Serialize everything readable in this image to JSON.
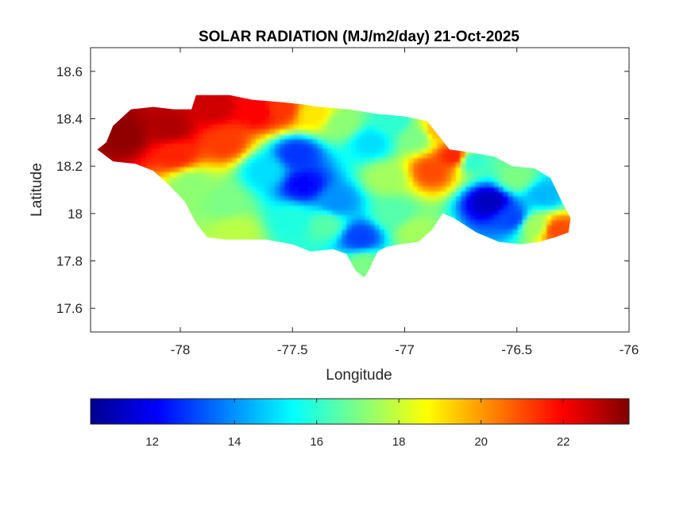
{
  "chart_data": {
    "type": "heatmap",
    "title": "SOLAR RADIATION (MJ/m2/day) 21-Oct-2025",
    "xlabel": "Longitude",
    "ylabel": "Latitude",
    "xlim": [
      -78.4,
      -76.0
    ],
    "ylim": [
      17.5,
      18.7
    ],
    "xticks": [
      -78,
      -77.5,
      -77,
      -76.5,
      -76
    ],
    "xtick_labels": [
      "-78",
      "-77.5",
      "-77",
      "-76.5",
      "-76"
    ],
    "yticks": [
      17.6,
      17.8,
      18.0,
      18.2,
      18.4,
      18.6
    ],
    "ytick_labels": [
      "17.6",
      "17.8",
      "18",
      "18.2",
      "18.4",
      "18.6"
    ],
    "grid": false,
    "colormap": "jet",
    "colorbar": {
      "orientation": "horizontal",
      "range": [
        10.5,
        23.6
      ],
      "ticks": [
        12,
        14,
        16,
        18,
        20,
        22
      ],
      "tick_labels": [
        "12",
        "14",
        "16",
        "18",
        "20",
        "22"
      ],
      "colors": [
        "#00008f",
        "#0000ff",
        "#0080ff",
        "#00ffff",
        "#80ff80",
        "#ffff00",
        "#ff8000",
        "#ff0000",
        "#800000"
      ]
    },
    "value_range": [
      10.5,
      23.6
    ],
    "field_points": [
      {
        "lon": -78.25,
        "lat": 18.33,
        "value": 23.4
      },
      {
        "lon": -78.05,
        "lat": 18.36,
        "value": 23.0
      },
      {
        "lon": -78.02,
        "lat": 18.25,
        "value": 21.5
      },
      {
        "lon": -77.85,
        "lat": 18.45,
        "value": 22.6
      },
      {
        "lon": -77.8,
        "lat": 18.3,
        "value": 21.2
      },
      {
        "lon": -77.65,
        "lat": 18.43,
        "value": 22.0
      },
      {
        "lon": -77.55,
        "lat": 18.44,
        "value": 21.3
      },
      {
        "lon": -77.4,
        "lat": 18.42,
        "value": 19.0
      },
      {
        "lon": -77.95,
        "lat": 18.12,
        "value": 17.2
      },
      {
        "lon": -77.8,
        "lat": 18.05,
        "value": 17.0
      },
      {
        "lon": -77.75,
        "lat": 17.92,
        "value": 17.8
      },
      {
        "lon": -77.62,
        "lat": 18.18,
        "value": 15.0
      },
      {
        "lon": -77.48,
        "lat": 18.25,
        "value": 12.8
      },
      {
        "lon": -77.45,
        "lat": 18.12,
        "value": 12.2
      },
      {
        "lon": -77.3,
        "lat": 18.05,
        "value": 14.0
      },
      {
        "lon": -77.5,
        "lat": 17.97,
        "value": 15.8
      },
      {
        "lon": -77.35,
        "lat": 17.95,
        "value": 16.5
      },
      {
        "lon": -77.2,
        "lat": 17.9,
        "value": 13.0
      },
      {
        "lon": -77.18,
        "lat": 17.78,
        "value": 17.0
      },
      {
        "lon": -77.28,
        "lat": 18.38,
        "value": 17.2
      },
      {
        "lon": -77.15,
        "lat": 18.3,
        "value": 15.0
      },
      {
        "lon": -77.05,
        "lat": 18.38,
        "value": 16.0
      },
      {
        "lon": -76.95,
        "lat": 18.32,
        "value": 17.0
      },
      {
        "lon": -77.08,
        "lat": 18.15,
        "value": 17.5
      },
      {
        "lon": -77.05,
        "lat": 18.0,
        "value": 16.5
      },
      {
        "lon": -76.95,
        "lat": 17.92,
        "value": 17.5
      },
      {
        "lon": -76.88,
        "lat": 18.18,
        "value": 21.0
      },
      {
        "lon": -76.78,
        "lat": 18.24,
        "value": 21.5
      },
      {
        "lon": -76.85,
        "lat": 18.35,
        "value": 19.5
      },
      {
        "lon": -76.7,
        "lat": 18.22,
        "value": 16.0
      },
      {
        "lon": -76.62,
        "lat": 18.05,
        "value": 11.2
      },
      {
        "lon": -76.52,
        "lat": 17.98,
        "value": 13.0
      },
      {
        "lon": -76.5,
        "lat": 18.15,
        "value": 17.0
      },
      {
        "lon": -76.38,
        "lat": 18.08,
        "value": 14.5
      },
      {
        "lon": -76.42,
        "lat": 17.95,
        "value": 17.5
      },
      {
        "lon": -76.32,
        "lat": 17.93,
        "value": 21.0
      }
    ]
  }
}
